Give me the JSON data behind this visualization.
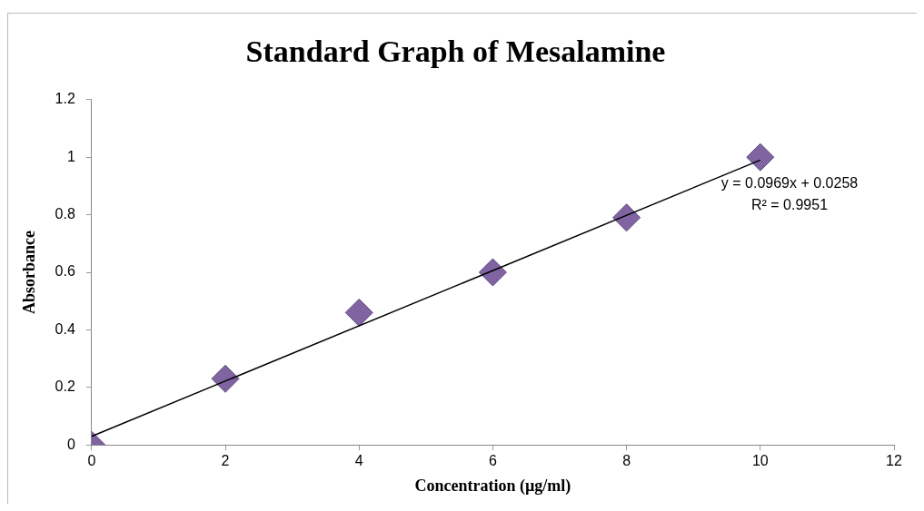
{
  "chart_data": {
    "type": "scatter",
    "title": "Standard Graph of Mesalamine",
    "xlabel": "Concentration (µg/ml)",
    "ylabel": "Absorbance",
    "x": [
      0,
      2,
      4,
      6,
      8,
      10
    ],
    "series": [
      {
        "type": "scatter",
        "color": "#8064a2",
        "values": [
          0,
          0.23,
          0.46,
          0.6,
          0.79,
          1.0
        ],
        "marker": "diamond"
      },
      {
        "type": "line",
        "color": "#000000",
        "x": [
          0,
          10
        ],
        "values": [
          0.03,
          0.99
        ],
        "marker": "none",
        "line_style": "solid"
      }
    ],
    "xlim": [
      0,
      12
    ],
    "xticks": [
      0,
      2,
      4,
      6,
      8,
      10,
      12
    ],
    "ylim": [
      0,
      1.2
    ],
    "yticks": [
      0,
      0.2,
      0.4,
      0.6,
      0.8,
      1,
      1.2
    ],
    "grid": false,
    "legend": false,
    "annotations": [
      "y = 0.0969x + 0.0258",
      "R² = 0.9951"
    ]
  }
}
